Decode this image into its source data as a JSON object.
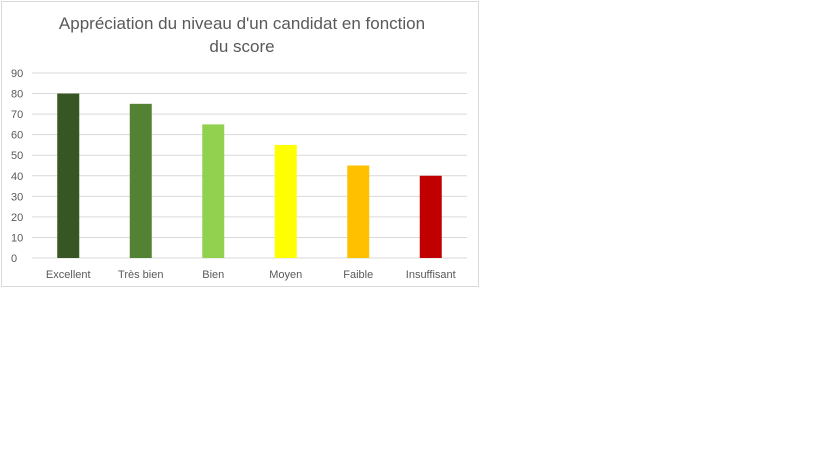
{
  "chart_data": {
    "type": "bar",
    "title_lines": [
      "Appréciation du niveau d'un candidat en fonction",
      "du score"
    ],
    "categories": [
      "Excellent",
      "Très bien",
      "Bien",
      "Moyen",
      "Faible",
      "Insuffisant"
    ],
    "values": [
      80,
      75,
      65,
      55,
      45,
      40
    ],
    "colors": [
      "#375623",
      "#548235",
      "#92d050",
      "#ffff00",
      "#ffc000",
      "#c00000"
    ],
    "xlabel": "",
    "ylabel": "",
    "ylim": [
      0,
      90
    ],
    "yticks": [
      "0",
      "10",
      "20",
      "30",
      "40",
      "50",
      "60",
      "70",
      "80",
      "90"
    ],
    "grid": true,
    "gridline_color": "#d9d9d9",
    "legend": false
  }
}
